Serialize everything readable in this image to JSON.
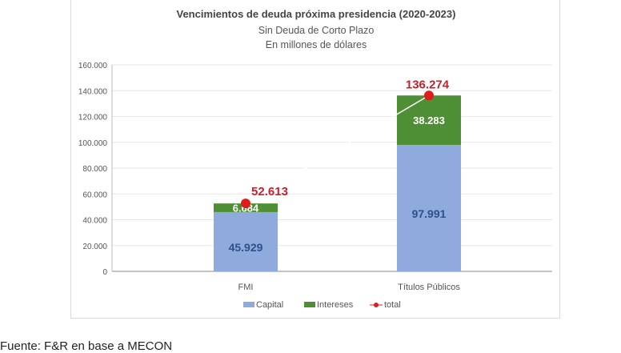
{
  "chart_data": {
    "type": "bar",
    "stacked": true,
    "title": "Vencimientos de deuda próxima presidencia (2020-2023)",
    "subtitle": [
      "Sin Deuda de Corto Plazo",
      "En millones de dólares"
    ],
    "categories": [
      "FMI",
      "Títulos Públicos"
    ],
    "series": [
      {
        "name": "Capital",
        "values": [
          45929,
          97991
        ],
        "labels": [
          "45.929",
          "97.991"
        ],
        "color": "#8faadc"
      },
      {
        "name": "Intereses",
        "values": [
          6684,
          38283
        ],
        "labels": [
          "6.684",
          "38.283"
        ],
        "color": "#4e8f35"
      },
      {
        "name": "total",
        "type": "line",
        "values": [
          52613,
          136274
        ],
        "labels": [
          "52.613",
          "136.274"
        ],
        "color": "#e01b1b"
      }
    ],
    "ylim": [
      0,
      160000
    ],
    "yticks": [
      "0",
      "20.000",
      "40.000",
      "60.000",
      "80.000",
      "100.000",
      "120.000",
      "140.000",
      "160.000"
    ],
    "grid": true,
    "legend": "bottom"
  },
  "source": "Fuente: F&R en base a MECON"
}
